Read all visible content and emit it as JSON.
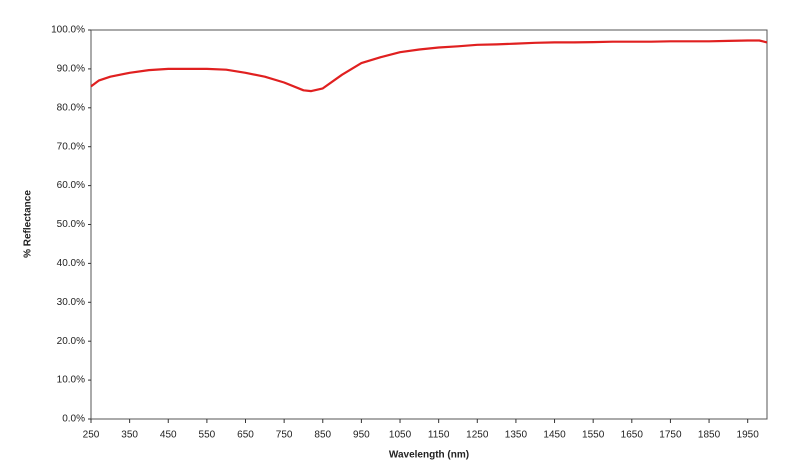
{
  "chart_data": {
    "type": "line",
    "xlabel": "Wavelength (nm)",
    "ylabel": "% Reflectance",
    "x": [
      250,
      270,
      300,
      350,
      400,
      450,
      500,
      550,
      600,
      650,
      700,
      750,
      800,
      820,
      850,
      900,
      950,
      1000,
      1050,
      1100,
      1150,
      1200,
      1250,
      1300,
      1350,
      1400,
      1450,
      1500,
      1550,
      1600,
      1650,
      1700,
      1750,
      1800,
      1850,
      1900,
      1950,
      1980,
      2000
    ],
    "series": [
      {
        "color": "#e02020",
        "values": [
          85.5,
          87,
          88,
          89,
          89.7,
          90,
          90,
          90,
          89.8,
          89,
          88,
          86.5,
          84.5,
          84.3,
          85,
          88.5,
          91.5,
          93,
          94.3,
          95,
          95.5,
          95.8,
          96.2,
          96.3,
          96.5,
          96.7,
          96.8,
          96.8,
          96.9,
          97,
          97,
          97,
          97.1,
          97.1,
          97.1,
          97.2,
          97.3,
          97.3,
          96.8
        ]
      }
    ],
    "xlim": [
      250,
      2000
    ],
    "xticks": [
      250,
      350,
      450,
      550,
      650,
      750,
      850,
      950,
      1050,
      1150,
      1250,
      1350,
      1450,
      1550,
      1650,
      1750,
      1850,
      1950
    ],
    "ylim": [
      0,
      100
    ],
    "yticks": [
      {
        "value": 0,
        "label": "0.0%"
      },
      {
        "value": 10,
        "label": "10.0%"
      },
      {
        "value": 20,
        "label": "20.0%"
      },
      {
        "value": 30,
        "label": "30.0%"
      },
      {
        "value": 40,
        "label": "40.0%"
      },
      {
        "value": 50,
        "label": "50.0%"
      },
      {
        "value": 60,
        "label": "60.0%"
      },
      {
        "value": 70,
        "label": "70.0%"
      },
      {
        "value": 80,
        "label": "80.0%"
      },
      {
        "value": 90,
        "label": "90.0%"
      },
      {
        "value": 100,
        "label": "100.0%"
      }
    ],
    "grid": false
  }
}
